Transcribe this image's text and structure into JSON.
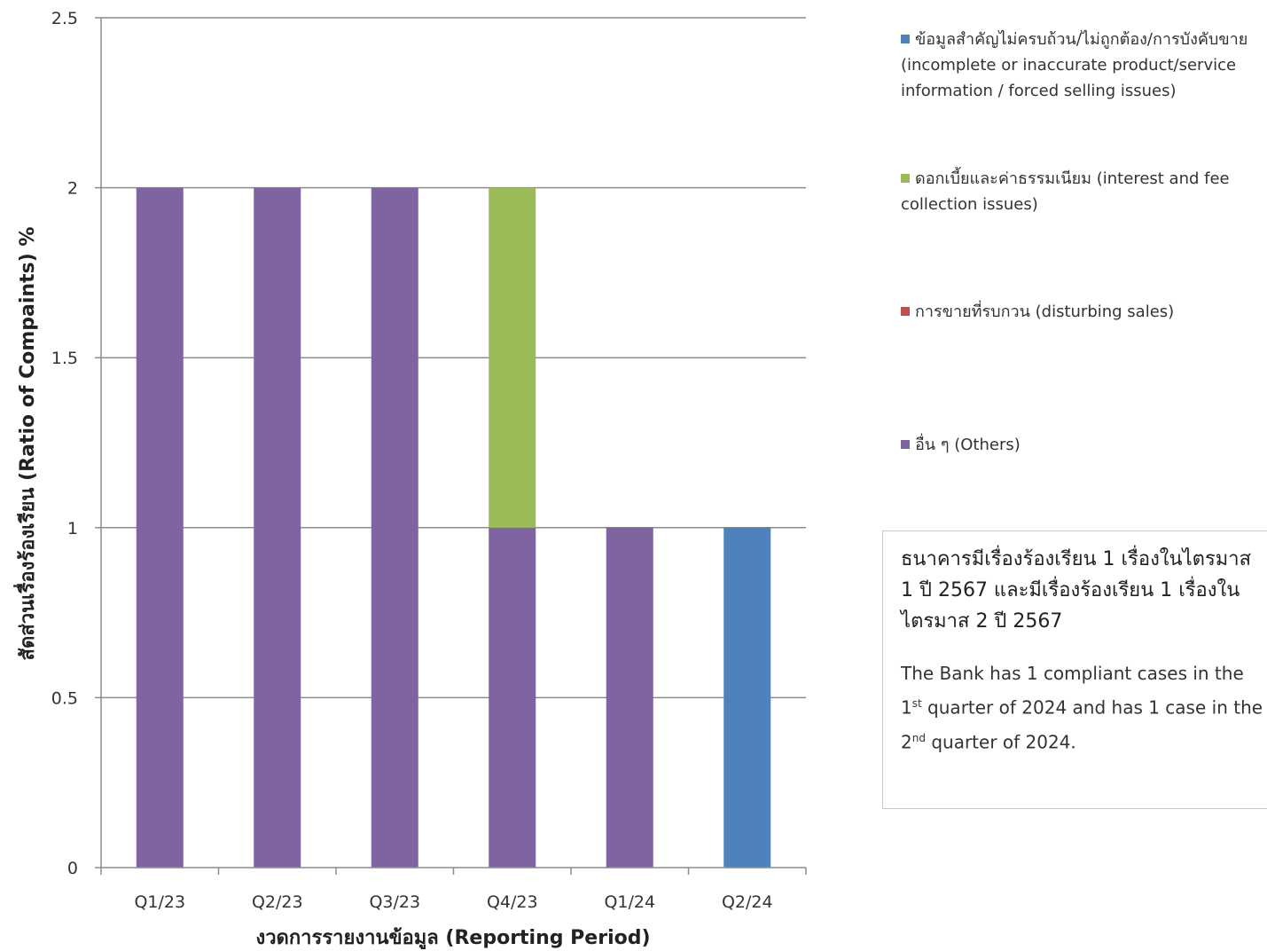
{
  "chart_data": {
    "type": "bar",
    "stacked": true,
    "categories": [
      "Q1/23",
      "Q2/23",
      "Q3/23",
      "Q4/23",
      "Q1/24",
      "Q2/24"
    ],
    "series": [
      {
        "name": "อื่น ๆ (Others)",
        "color": "#8064a2",
        "values": [
          2,
          2,
          2,
          1,
          1,
          0
        ]
      },
      {
        "name": "การขายที่รบกวน (disturbing sales)",
        "color": "#c0504d",
        "values": [
          0,
          0,
          0,
          0,
          0,
          0
        ]
      },
      {
        "name": "ดอกเบี้ยและค่าธรรมเนียม (interest and fee collection issues)",
        "color": "#9bbb59",
        "values": [
          0,
          0,
          0,
          1,
          0,
          0
        ]
      },
      {
        "name": "ข้อมูลสำคัญไม่ครบถ้วน/ไม่ถูกต้อง/การบังคับขาย (incomplete or inaccurate product/service information / forced selling issues)",
        "color": "#4f81bd",
        "values": [
          0,
          0,
          0,
          0,
          0,
          1
        ]
      }
    ],
    "legend_order": [
      3,
      2,
      1,
      0
    ],
    "yticks": [
      "0",
      "0.5",
      "1",
      "1.5",
      "2",
      "2.5"
    ],
    "ylim": [
      0,
      2.5
    ],
    "ylabel": "สัดส่วนเรื่องร้องเรียน  (Ratio of Compaints) %",
    "xlabel": "งวดการรายงานข้อมูล  (Reporting Period)",
    "grid": true,
    "legend_position": "right"
  },
  "note": {
    "thai": "ธนาคารมีเรื่องร้องเรียน 1 เรื่องในไตรมาส 1 ปี 2567 และมีเรื่องร้องเรียน 1 เรื่องในไตรมาส 2 ปี 2567",
    "en_part1": "The Bank has  1 compliant cases in the 1",
    "en_sup1": "st",
    "en_part2": " quarter of 2024 and has 1 case in  the 2",
    "en_sup2": "nd",
    "en_part3": " quarter of 2024."
  }
}
